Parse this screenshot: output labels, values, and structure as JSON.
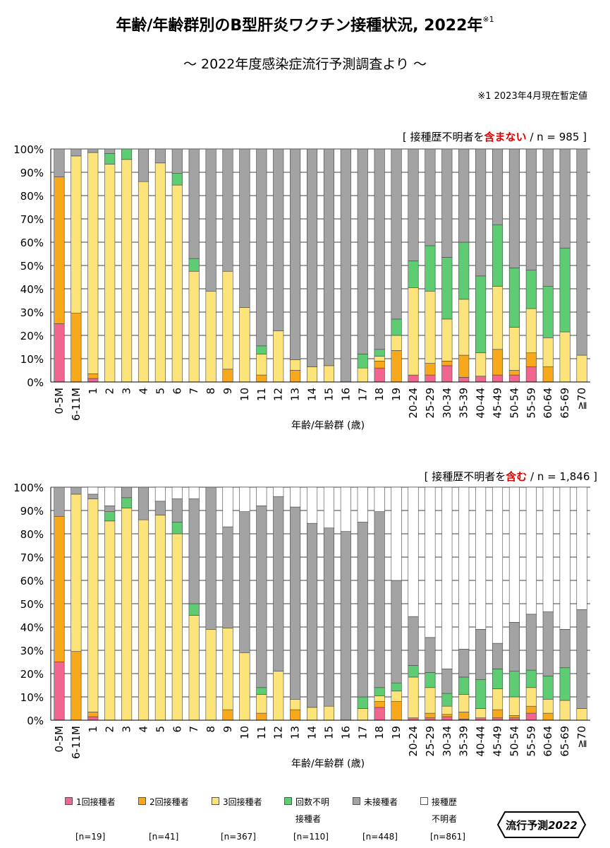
{
  "title": "年齢/年齢群別のB型肝炎ワクチン接種状況, 2022年",
  "title_note_mark": "※1",
  "subtitle": "～ 2022年度感染症流行予測調査より ～",
  "note": "※1  2023年4月現在暫定値",
  "chart1_note": {
    "pre": "[ 接種歴不明者を",
    "highlight": "含まない",
    "post": " / n = 985 ]"
  },
  "chart2_note": {
    "pre": "[ 接種歴不明者を",
    "highlight": "含む",
    "post": " / n = 1,846 ]"
  },
  "colors": {
    "one": "#f0668f",
    "two": "#f7a91b",
    "three": "#fce47a",
    "unknown_count": "#5dcc72",
    "none": "#a3a3a3",
    "history_unknown": "#ffffff",
    "highlight": "#e00000"
  },
  "legend": [
    {
      "key": "one",
      "label": "1回接種者",
      "label2": "",
      "n": "[n=19]"
    },
    {
      "key": "two",
      "label": "2回接種者",
      "label2": "",
      "n": "[n=41]"
    },
    {
      "key": "three",
      "label": "3回接種者",
      "label2": "",
      "n": "[n=367]"
    },
    {
      "key": "unknown_count",
      "label": "回数不明",
      "label2": "接種者",
      "n": "[n=110]"
    },
    {
      "key": "none",
      "label": "未接種者",
      "label2": "",
      "n": "[n=448]"
    },
    {
      "key": "history_unknown",
      "label": "接種歴",
      "label2": "不明者",
      "n": "[n=861]"
    }
  ],
  "logo": {
    "text": "流行予測",
    "year": "2022"
  },
  "chart_data": [
    {
      "type": "bar",
      "stacked": true,
      "title": "接種歴不明者を含まない / n = 985",
      "xlabel": "年齢/年齢群 (歳)",
      "ylabel": "",
      "ylim": [
        0,
        100
      ],
      "yticks": [
        "0%",
        "10%",
        "20%",
        "30%",
        "40%",
        "50%",
        "60%",
        "70%",
        "80%",
        "90%",
        "100%"
      ],
      "categories": [
        "0-5M",
        "6-11M",
        "1",
        "2",
        "3",
        "4",
        "5",
        "6",
        "7",
        "8",
        "9",
        "10",
        "11",
        "12",
        "13",
        "14",
        "15",
        "16",
        "17",
        "18",
        "19",
        "20-24",
        "25-29",
        "30-34",
        "35-39",
        "40-44",
        "45-49",
        "50-54",
        "55-59",
        "60-64",
        "65-69",
        "≧70"
      ],
      "series": [
        {
          "name": "1回接種者",
          "key": "one",
          "values": [
            25,
            0,
            1.5,
            0,
            0,
            0,
            0,
            0,
            0,
            0,
            0,
            0,
            0,
            0,
            0,
            0,
            0,
            0,
            0,
            6,
            0,
            3,
            3,
            7,
            2,
            2.5,
            3,
            3,
            6.5,
            0,
            0,
            0
          ]
        },
        {
          "name": "2回接種者",
          "key": "two",
          "values": [
            63,
            29.5,
            2,
            0,
            0,
            0,
            0,
            0,
            0,
            0,
            5.5,
            0,
            3,
            0,
            5,
            0,
            0,
            0,
            0,
            3,
            13.5,
            0,
            5,
            2,
            9.5,
            0,
            11,
            2,
            6,
            6.5,
            0,
            0
          ]
        },
        {
          "name": "3回接種者",
          "key": "three",
          "values": [
            0,
            67.5,
            95,
            93.5,
            95.5,
            86,
            94,
            84.5,
            47.5,
            39,
            42,
            32,
            9,
            22,
            4.5,
            6.5,
            7,
            0,
            6,
            2,
            6.5,
            37.5,
            31,
            18,
            24,
            10,
            27,
            18.5,
            19,
            12.5,
            21.5,
            11.5
          ]
        },
        {
          "name": "回数不明接種者",
          "key": "unknown_count",
          "values": [
            0,
            0,
            0,
            4.5,
            4.5,
            0,
            0,
            5,
            5.5,
            0,
            0,
            0,
            3.5,
            0,
            0,
            0,
            0,
            0,
            6,
            3,
            7,
            11.5,
            19.5,
            26.5,
            24.5,
            33,
            26.5,
            25.5,
            16.5,
            22,
            36,
            0
          ]
        },
        {
          "name": "未接種者",
          "key": "none",
          "values": [
            12,
            3,
            1.5,
            2,
            0,
            14,
            6,
            10.5,
            47,
            61,
            52.5,
            68,
            84.5,
            78,
            90.5,
            93.5,
            93,
            100,
            88,
            86,
            73,
            48,
            41.5,
            46.5,
            40,
            54.5,
            32.5,
            51,
            52,
            59,
            42.5,
            88.5
          ]
        }
      ]
    },
    {
      "type": "bar",
      "stacked": true,
      "title": "接種歴不明者を含む / n = 1,846",
      "xlabel": "年齢/年齢群 (歳)",
      "ylabel": "",
      "ylim": [
        0,
        100
      ],
      "yticks": [
        "0%",
        "10%",
        "20%",
        "30%",
        "40%",
        "50%",
        "60%",
        "70%",
        "80%",
        "90%",
        "100%"
      ],
      "categories": [
        "0-5M",
        "6-11M",
        "1",
        "2",
        "3",
        "4",
        "5",
        "6",
        "7",
        "8",
        "9",
        "10",
        "11",
        "12",
        "13",
        "14",
        "15",
        "16",
        "17",
        "18",
        "19",
        "20-24",
        "25-29",
        "30-34",
        "35-39",
        "40-44",
        "45-49",
        "50-54",
        "55-59",
        "60-64",
        "65-69",
        "≧70"
      ],
      "series": [
        {
          "name": "1回接種者",
          "key": "one",
          "values": [
            25,
            0,
            1.5,
            0,
            0,
            0,
            0,
            0,
            0,
            0,
            0,
            0,
            0,
            0,
            0,
            0,
            0,
            0,
            0,
            5.5,
            0,
            1,
            1,
            1.5,
            0.5,
            1,
            1,
            1,
            3,
            0,
            0,
            0
          ]
        },
        {
          "name": "2回接種者",
          "key": "two",
          "values": [
            62.5,
            29.5,
            2,
            0,
            0,
            0,
            0,
            0,
            0,
            0,
            4.5,
            0,
            3,
            0,
            4.5,
            0,
            0,
            0,
            0,
            2.5,
            8,
            0,
            2,
            1,
            3,
            0,
            3.5,
            1,
            3,
            3,
            0,
            0
          ]
        },
        {
          "name": "3回接種者",
          "key": "three",
          "values": [
            0,
            67.5,
            91.5,
            85.5,
            91,
            86,
            88,
            80,
            45,
            39,
            35,
            29,
            8,
            21,
            4.5,
            5.5,
            6,
            0,
            5,
            2.5,
            4.5,
            17.5,
            11,
            3.5,
            7.5,
            4,
            9,
            8,
            8,
            6,
            8.5,
            5
          ]
        },
        {
          "name": "回数不明接種者",
          "key": "unknown_count",
          "values": [
            0,
            0,
            0,
            4,
            4.5,
            0,
            0,
            5,
            5,
            0,
            0,
            0,
            3,
            0,
            0,
            0,
            0,
            0,
            5,
            3.5,
            3.5,
            5,
            6.5,
            5.5,
            7.5,
            12.5,
            8.5,
            11,
            7.5,
            10,
            14,
            0
          ]
        },
        {
          "name": "未接種者",
          "key": "none",
          "values": [
            12.5,
            3,
            2,
            2.5,
            4.5,
            14,
            6,
            10,
            45,
            61,
            43.5,
            60.5,
            78,
            75,
            82.5,
            79,
            76.5,
            81,
            75,
            75.5,
            44,
            21,
            15,
            10.5,
            12,
            21.5,
            11,
            21,
            24,
            27.5,
            16.5,
            42.5
          ]
        },
        {
          "name": "接種歴不明者",
          "key": "history_unknown",
          "values": [
            0,
            0,
            3,
            8,
            0,
            0,
            6,
            5,
            5,
            0,
            17,
            10.5,
            8,
            4,
            8.5,
            15.5,
            17.5,
            19,
            15,
            10.5,
            40,
            55.5,
            64.5,
            78,
            69.5,
            61,
            67,
            58,
            54.5,
            53.5,
            61,
            52.5
          ]
        }
      ]
    }
  ]
}
